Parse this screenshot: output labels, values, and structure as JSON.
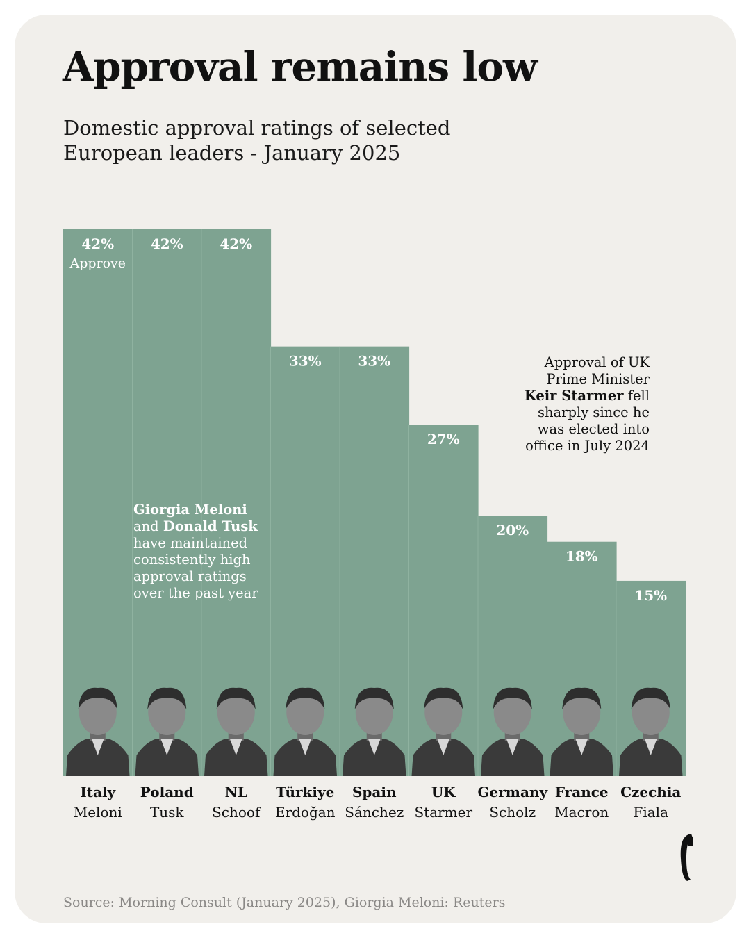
{
  "title": "Approval remains low",
  "subtitle": "Domestic approval ratings of selected European leaders - January 2025",
  "approve_label": "Approve",
  "annotations": {
    "left": {
      "name1": "Giorgia Meloni",
      "and": " and ",
      "name2": "Donald Tusk",
      "rest": " have maintained consistently high approval ratings over the past year"
    },
    "right": {
      "pre": "Approval of UK Prime Minister ",
      "name": "Keir Starmer",
      "post": " fell sharply since he was elected into office in July 2024"
    }
  },
  "source": "Source: Morning Consult (January 2025), Giorgia Meloni: Reuters",
  "colors": {
    "bar": "#7ea391",
    "background": "#f1efeb",
    "portrait": "#3a3a3a"
  },
  "chart_data": {
    "type": "bar",
    "title": "Approval remains low",
    "ylabel": "Approve",
    "ylim": [
      0,
      42
    ],
    "unit": "%",
    "categories": [
      "Italy",
      "Poland",
      "NL",
      "Türkiye",
      "Spain",
      "UK",
      "Germany",
      "France",
      "Czechia"
    ],
    "leaders": [
      "Meloni",
      "Tusk",
      "Schoof",
      "Erdoğan",
      "Sánchez",
      "Starmer",
      "Scholz",
      "Macron",
      "Fiala"
    ],
    "values": [
      42,
      42,
      42,
      33,
      33,
      27,
      20,
      18,
      15
    ],
    "value_labels": [
      "42%",
      "42%",
      "42%",
      "33%",
      "33%",
      "27%",
      "20%",
      "18%",
      "15%"
    ]
  }
}
